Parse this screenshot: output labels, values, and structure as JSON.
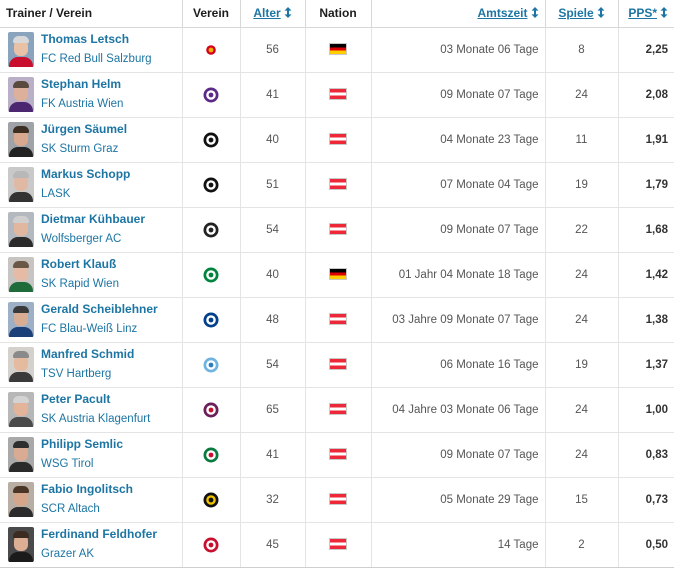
{
  "headers": {
    "trainer": "Trainer / Verein",
    "club": "Verein",
    "age": "Alter",
    "nation": "Nation",
    "time": "Amtszeit",
    "games": "Spiele",
    "pps": "PPS*"
  },
  "rows": [
    {
      "name": "Thomas Letsch",
      "club": "FC Red Bull Salzburg",
      "age": "56",
      "nation": "de",
      "nation_icon": "germany-flag-icon",
      "tenure": "03 Monate 06 Tage",
      "games": "8",
      "pps": "2,25",
      "crest_icon": "red-bull-salzburg-crest-icon",
      "crest_colors": [
        "#ffffff",
        "#d6001c",
        "#e8b400"
      ],
      "photo": {
        "bg": "#8aa4be",
        "skin": "#e8c1a7",
        "hair": "#d8d8d8",
        "shirt": "#c8102e"
      }
    },
    {
      "name": "Stephan Helm",
      "club": "FK Austria Wien",
      "age": "41",
      "nation": "at",
      "nation_icon": "austria-flag-icon",
      "tenure": "09 Monate 07 Tage",
      "games": "24",
      "pps": "2,08",
      "crest_icon": "austria-wien-crest-icon",
      "crest_colors": [
        "#5b2a86",
        "#ffffff",
        "#5b2a86"
      ],
      "photo": {
        "bg": "#b9b0c8",
        "skin": "#dcb09b",
        "hair": "#5a4a3e",
        "shirt": "#4a2770"
      }
    },
    {
      "name": "Jürgen Säumel",
      "club": "SK Sturm Graz",
      "age": "40",
      "nation": "at",
      "nation_icon": "austria-flag-icon",
      "tenure": "04 Monate 23 Tage",
      "games": "11",
      "pps": "1,91",
      "crest_icon": "sturm-graz-crest-icon",
      "crest_colors": [
        "#111111",
        "#ffffff",
        "#111111"
      ],
      "photo": {
        "bg": "#9fa3a8",
        "skin": "#d8a88f",
        "hair": "#3d2e22",
        "shirt": "#222222"
      }
    },
    {
      "name": "Markus Schopp",
      "club": "LASK",
      "age": "51",
      "nation": "at",
      "nation_icon": "austria-flag-icon",
      "tenure": "07 Monate 04 Tage",
      "games": "19",
      "pps": "1,79",
      "crest_icon": "lask-crest-icon",
      "crest_colors": [
        "#111111",
        "#ffffff",
        "#111111"
      ],
      "photo": {
        "bg": "#c9c9c9",
        "skin": "#e0b9a5",
        "hair": "#b8b8b8",
        "shirt": "#333333"
      }
    },
    {
      "name": "Dietmar Kühbauer",
      "club": "Wolfsberger AC",
      "age": "54",
      "nation": "at",
      "nation_icon": "austria-flag-icon",
      "tenure": "09 Monate 07 Tage",
      "games": "22",
      "pps": "1,68",
      "crest_icon": "wolfsberger-ac-crest-icon",
      "crest_colors": [
        "#222222",
        "#ffffff",
        "#222222"
      ],
      "photo": {
        "bg": "#b4b9bf",
        "skin": "#e2b7a0",
        "hair": "#cfcfcf",
        "shirt": "#2b2b2b"
      }
    },
    {
      "name": "Robert Klauß",
      "club": "SK Rapid Wien",
      "age": "40",
      "nation": "de",
      "nation_icon": "germany-flag-icon",
      "tenure": "01 Jahr 04 Monate 18 Tage",
      "games": "24",
      "pps": "1,42",
      "crest_icon": "rapid-wien-crest-icon",
      "crest_colors": [
        "#00843d",
        "#ffffff",
        "#00843d"
      ],
      "photo": {
        "bg": "#c7c4c2",
        "skin": "#e6bba5",
        "hair": "#6b5746",
        "shirt": "#1f6b3a"
      }
    },
    {
      "name": "Gerald Scheiblehner",
      "club": "FC Blau-Weiß Linz",
      "age": "48",
      "nation": "at",
      "nation_icon": "austria-flag-icon",
      "tenure": "03 Jahre 09 Monate 07 Tage",
      "games": "24",
      "pps": "1,38",
      "crest_icon": "blau-weiss-linz-crest-icon",
      "crest_colors": [
        "#003f8a",
        "#ffffff",
        "#003f8a"
      ],
      "photo": {
        "bg": "#9db0c6",
        "skin": "#d9ad94",
        "hair": "#3a3a3a",
        "shirt": "#1b3f78"
      }
    },
    {
      "name": "Manfred Schmid",
      "club": "TSV Hartberg",
      "age": "54",
      "nation": "at",
      "nation_icon": "austria-flag-icon",
      "tenure": "06 Monate 16 Tage",
      "games": "19",
      "pps": "1,37",
      "crest_icon": "tsv-hartberg-crest-icon",
      "crest_colors": [
        "#6fb3e0",
        "#ffffff",
        "#2a7fc0"
      ],
      "photo": {
        "bg": "#d4d0cc",
        "skin": "#e4bb9f",
        "hair": "#8a8a8a",
        "shirt": "#3a3a3a"
      }
    },
    {
      "name": "Peter Pacult",
      "club": "SK Austria Klagenfurt",
      "age": "65",
      "nation": "at",
      "nation_icon": "austria-flag-icon",
      "tenure": "04 Jahre 03 Monate 06 Tage",
      "games": "24",
      "pps": "1,00",
      "crest_icon": "austria-klagenfurt-crest-icon",
      "crest_colors": [
        "#6a1e5a",
        "#ffffff",
        "#c8102e"
      ],
      "photo": {
        "bg": "#b7b7b7",
        "skin": "#e3b49a",
        "hair": "#d3d3d3",
        "shirt": "#4a4a4a"
      }
    },
    {
      "name": "Philipp Semlic",
      "club": "WSG Tirol",
      "age": "41",
      "nation": "at",
      "nation_icon": "austria-flag-icon",
      "tenure": "09 Monate 07 Tage",
      "games": "24",
      "pps": "0,83",
      "crest_icon": "wsg-tirol-crest-icon",
      "crest_colors": [
        "#0a7a3e",
        "#ffffff",
        "#c8102e"
      ],
      "photo": {
        "bg": "#a9a9a9",
        "skin": "#d9ab92",
        "hair": "#2e2e2e",
        "shirt": "#2a2a2a"
      }
    },
    {
      "name": "Fabio Ingolitsch",
      "club": "SCR Altach",
      "age": "32",
      "nation": "at",
      "nation_icon": "austria-flag-icon",
      "tenure": "05 Monate 29 Tage",
      "games": "15",
      "pps": "0,73",
      "crest_icon": "scr-altach-crest-icon",
      "crest_colors": [
        "#111111",
        "#f2c300",
        "#111111"
      ],
      "photo": {
        "bg": "#b8aea4",
        "skin": "#d6a68b",
        "hair": "#4a3626",
        "shirt": "#2b2b2b"
      }
    },
    {
      "name": "Ferdinand Feldhofer",
      "club": "Grazer AK",
      "age": "45",
      "nation": "at",
      "nation_icon": "austria-flag-icon",
      "tenure": "14 Tage",
      "games": "2",
      "pps": "0,50",
      "crest_icon": "grazer-ak-crest-icon",
      "crest_colors": [
        "#c8102e",
        "#ffffff",
        "#c8102e"
      ],
      "photo": {
        "bg": "#4a4a4a",
        "skin": "#dcae93",
        "hair": "#3b2b20",
        "shirt": "#1b1b1b"
      }
    }
  ]
}
